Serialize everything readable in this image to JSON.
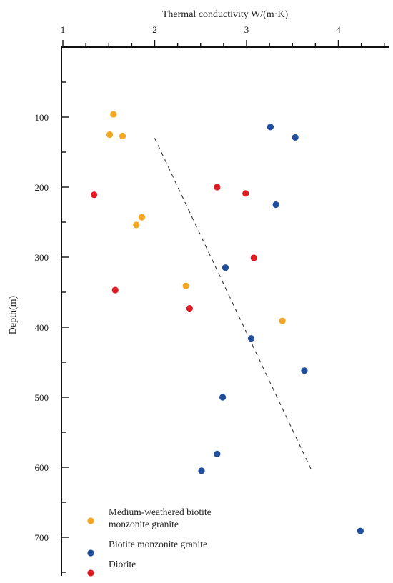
{
  "chart_data": {
    "type": "scatter",
    "xlabel": "Thermal conductivity W/(m·K)",
    "ylabel": "Depth(m)",
    "x_axis_position": "top",
    "xlim": [
      1,
      4.6
    ],
    "ylim": [
      0,
      760
    ],
    "y_inverted": true,
    "x_ticks": [
      1,
      2,
      3,
      4
    ],
    "x_tick_labels": [
      "1",
      "2",
      "3",
      "4"
    ],
    "y_ticks": [
      100,
      200,
      300,
      400,
      500,
      600,
      700
    ],
    "y_tick_labels": [
      "100",
      "200",
      "300",
      "400",
      "500",
      "600",
      "700"
    ],
    "grid": false,
    "legend_position": "bottom-left",
    "series": [
      {
        "name": "Medium-weathered biotite monzonite granite",
        "name_lines": [
          "Medium-weathered biotite",
          "monzonite granite"
        ],
        "color": "#F5A623",
        "points": [
          {
            "x": 1.55,
            "y": 96
          },
          {
            "x": 1.51,
            "y": 125
          },
          {
            "x": 1.65,
            "y": 127
          },
          {
            "x": 1.86,
            "y": 243
          },
          {
            "x": 1.8,
            "y": 254
          },
          {
            "x": 2.34,
            "y": 341
          },
          {
            "x": 3.39,
            "y": 391
          }
        ]
      },
      {
        "name": "Biotite monzonite granite",
        "name_lines": [
          "Biotite monzonite granite"
        ],
        "color": "#1F4E9C",
        "points": [
          {
            "x": 3.26,
            "y": 114
          },
          {
            "x": 3.53,
            "y": 129
          },
          {
            "x": 3.32,
            "y": 225
          },
          {
            "x": 2.77,
            "y": 315
          },
          {
            "x": 3.05,
            "y": 416
          },
          {
            "x": 3.63,
            "y": 462
          },
          {
            "x": 2.74,
            "y": 500
          },
          {
            "x": 2.68,
            "y": 581
          },
          {
            "x": 2.51,
            "y": 605
          },
          {
            "x": 4.24,
            "y": 691
          }
        ]
      },
      {
        "name": "Diorite",
        "name_lines": [
          "Diorite"
        ],
        "color": "#E01B22",
        "points": [
          {
            "x": 2.68,
            "y": 200
          },
          {
            "x": 2.99,
            "y": 209
          },
          {
            "x": 1.34,
            "y": 211
          },
          {
            "x": 3.08,
            "y": 301
          },
          {
            "x": 1.57,
            "y": 347
          },
          {
            "x": 2.38,
            "y": 373
          }
        ]
      }
    ],
    "trend_line": {
      "style": "dashed",
      "color": "#333333",
      "from": {
        "x": 2.0,
        "y": 130
      },
      "to": {
        "x": 3.7,
        "y": 602
      }
    }
  }
}
